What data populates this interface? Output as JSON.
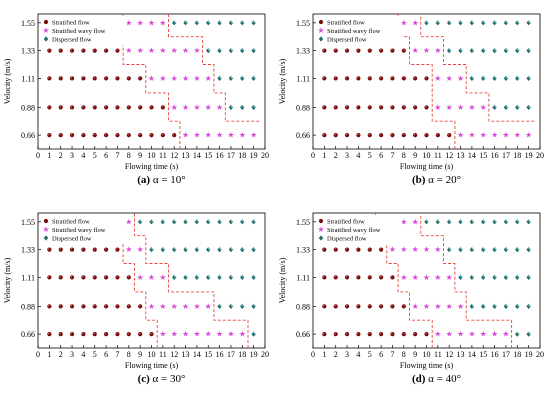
{
  "colors": {
    "stratified": "#7a0a0a",
    "wavy": "#d64bd6",
    "dispersed": "#1f6a6a",
    "boundary": "#e8443a"
  },
  "legend": {
    "stratified": "Stratified flow",
    "wavy": "Stratified wavy flow",
    "dispersed": "Dispersed flow"
  },
  "chart_data": [
    {
      "type": "scatter",
      "caption_letter": "(a)",
      "caption_text": "α = 10°",
      "xlabel": "Flowing time (s)",
      "ylabel": "Velocity (m/s)",
      "xlim": [
        0,
        20
      ],
      "x_ticks": [
        0,
        1,
        2,
        3,
        4,
        5,
        6,
        7,
        8,
        9,
        10,
        11,
        12,
        13,
        14,
        15,
        16,
        17,
        18,
        19,
        20
      ],
      "y_ticks": [
        "0.66",
        "0.88",
        "1.11",
        "1.33",
        "1.55"
      ],
      "x": [
        1,
        2,
        3,
        4,
        5,
        6,
        7,
        8,
        9,
        10,
        11,
        12,
        13,
        14,
        15,
        16,
        17,
        18,
        19
      ],
      "rows": [
        {
          "velocity": "0.66",
          "wavy_from": 13,
          "dispersed_from": 20
        },
        {
          "velocity": "0.88",
          "wavy_from": 12,
          "dispersed_from": 17
        },
        {
          "velocity": "1.11",
          "wavy_from": 10,
          "dispersed_from": 16
        },
        {
          "velocity": "1.33",
          "wavy_from": 8,
          "dispersed_from": 15
        },
        {
          "velocity": "1.55",
          "wavy_from": 8,
          "dispersed_from": 12
        }
      ],
      "wavy_boundary": [
        [
          12.5,
          0.55
        ],
        [
          12.5,
          0.77
        ],
        [
          11.5,
          0.77
        ],
        [
          11.5,
          0.995
        ],
        [
          9.5,
          0.995
        ],
        [
          9.5,
          1.22
        ],
        [
          7.5,
          1.22
        ],
        [
          7.5,
          1.44
        ],
        [
          7.5,
          1.44
        ],
        [
          7.5,
          1.62
        ]
      ],
      "dispersed_boundary": [
        [
          19.5,
          0.77
        ],
        [
          16.5,
          0.77
        ],
        [
          16.5,
          0.995
        ],
        [
          15.5,
          0.995
        ],
        [
          15.5,
          1.22
        ],
        [
          14.5,
          1.22
        ],
        [
          14.5,
          1.44
        ],
        [
          11.5,
          1.44
        ],
        [
          11.5,
          1.62
        ]
      ]
    },
    {
      "type": "scatter",
      "caption_letter": "(b)",
      "caption_text": "α = 20°",
      "xlabel": "Flowing time (s)",
      "ylabel": "Velocity (m/s)",
      "xlim": [
        0,
        20
      ],
      "x_ticks": [
        0,
        1,
        2,
        3,
        4,
        5,
        6,
        7,
        8,
        9,
        10,
        11,
        12,
        13,
        14,
        15,
        16,
        17,
        18,
        19,
        20
      ],
      "y_ticks": [
        "0.66",
        "0.88",
        "1.11",
        "1.33",
        "1.55"
      ],
      "x": [
        1,
        2,
        3,
        4,
        5,
        6,
        7,
        8,
        9,
        10,
        11,
        12,
        13,
        14,
        15,
        16,
        17,
        18,
        19
      ],
      "rows": [
        {
          "velocity": "0.66",
          "wavy_from": 13,
          "dispersed_from": 20
        },
        {
          "velocity": "0.88",
          "wavy_from": 11,
          "dispersed_from": 16
        },
        {
          "velocity": "1.11",
          "wavy_from": 11,
          "dispersed_from": 14
        },
        {
          "velocity": "1.33",
          "wavy_from": 9,
          "dispersed_from": 12
        },
        {
          "velocity": "1.55",
          "wavy_from": 8,
          "dispersed_from": 10
        }
      ],
      "wavy_boundary": [
        [
          12.5,
          0.55
        ],
        [
          12.5,
          0.77
        ],
        [
          10.5,
          0.77
        ],
        [
          10.5,
          0.995
        ],
        [
          10.5,
          0.995
        ],
        [
          10.5,
          1.22
        ],
        [
          8.5,
          1.22
        ],
        [
          8.5,
          1.44
        ],
        [
          7.5,
          1.44
        ],
        [
          7.5,
          1.62
        ]
      ],
      "dispersed_boundary": [
        [
          19.5,
          0.77
        ],
        [
          15.5,
          0.77
        ],
        [
          15.5,
          0.995
        ],
        [
          13.5,
          0.995
        ],
        [
          13.5,
          1.22
        ],
        [
          11.5,
          1.22
        ],
        [
          11.5,
          1.44
        ],
        [
          9.5,
          1.44
        ],
        [
          9.5,
          1.62
        ]
      ]
    },
    {
      "type": "scatter",
      "caption_letter": "(c)",
      "caption_text": "α = 30°",
      "xlabel": "Flowing time (s)",
      "ylabel": "Velocity (m/s)",
      "xlim": [
        0,
        20
      ],
      "x_ticks": [
        0,
        1,
        2,
        3,
        4,
        5,
        6,
        7,
        8,
        9,
        10,
        11,
        12,
        13,
        14,
        15,
        16,
        17,
        18,
        19,
        20
      ],
      "y_ticks": [
        "0.66",
        "0.88",
        "1.11",
        "1.33",
        "1.55"
      ],
      "x": [
        1,
        2,
        3,
        4,
        5,
        6,
        7,
        8,
        9,
        10,
        11,
        12,
        13,
        14,
        15,
        16,
        17,
        18,
        19
      ],
      "rows": [
        {
          "velocity": "0.66",
          "wavy_from": 11,
          "dispersed_from": 19
        },
        {
          "velocity": "0.88",
          "wavy_from": 10,
          "dispersed_from": 16
        },
        {
          "velocity": "1.11",
          "wavy_from": 9,
          "dispersed_from": 12
        },
        {
          "velocity": "1.33",
          "wavy_from": 8,
          "dispersed_from": 10
        },
        {
          "velocity": "1.55",
          "wavy_from": 7,
          "dispersed_from": 9
        }
      ],
      "wavy_boundary": [
        [
          10.5,
          0.55
        ],
        [
          10.5,
          0.77
        ],
        [
          9.5,
          0.77
        ],
        [
          9.5,
          0.995
        ],
        [
          8.5,
          0.995
        ],
        [
          8.5,
          1.22
        ],
        [
          7.5,
          1.22
        ],
        [
          7.5,
          1.44
        ],
        [
          6.5,
          1.44
        ],
        [
          6.5,
          1.62
        ]
      ],
      "dispersed_boundary": [
        [
          18.5,
          0.55
        ],
        [
          18.5,
          0.77
        ],
        [
          15.5,
          0.77
        ],
        [
          15.5,
          0.995
        ],
        [
          11.5,
          0.995
        ],
        [
          11.5,
          1.22
        ],
        [
          9.5,
          1.22
        ],
        [
          9.5,
          1.44
        ],
        [
          8.5,
          1.44
        ],
        [
          8.5,
          1.62
        ]
      ]
    },
    {
      "type": "scatter",
      "caption_letter": "(d)",
      "caption_text": "α = 40°",
      "xlabel": "Flowing time (s)",
      "ylabel": "Velocity (m/s)",
      "xlim": [
        0,
        20
      ],
      "x_ticks": [
        0,
        1,
        2,
        3,
        4,
        5,
        6,
        7,
        8,
        9,
        10,
        11,
        12,
        13,
        14,
        15,
        16,
        17,
        18,
        19,
        20
      ],
      "y_ticks": [
        "0.66",
        "0.88",
        "1.11",
        "1.33",
        "1.55"
      ],
      "x": [
        1,
        2,
        3,
        4,
        5,
        6,
        7,
        8,
        9,
        10,
        11,
        12,
        13,
        14,
        15,
        16,
        17,
        18,
        19
      ],
      "rows": [
        {
          "velocity": "0.66",
          "wavy_from": 11,
          "dispersed_from": 18
        },
        {
          "velocity": "0.88",
          "wavy_from": 9,
          "dispersed_from": 14
        },
        {
          "velocity": "1.11",
          "wavy_from": 8,
          "dispersed_from": 13
        },
        {
          "velocity": "1.33",
          "wavy_from": 7,
          "dispersed_from": 12
        },
        {
          "velocity": "1.55",
          "wavy_from": 6,
          "dispersed_from": 10
        }
      ],
      "wavy_boundary": [
        [
          10.5,
          0.55
        ],
        [
          10.5,
          0.77
        ],
        [
          8.5,
          0.77
        ],
        [
          8.5,
          0.995
        ],
        [
          7.5,
          0.995
        ],
        [
          7.5,
          1.22
        ],
        [
          6.5,
          1.22
        ],
        [
          6.5,
          1.44
        ],
        [
          5.5,
          1.44
        ],
        [
          5.5,
          1.62
        ]
      ],
      "dispersed_boundary": [
        [
          17.5,
          0.55
        ],
        [
          17.5,
          0.77
        ],
        [
          13.5,
          0.77
        ],
        [
          13.5,
          0.995
        ],
        [
          12.5,
          0.995
        ],
        [
          12.5,
          1.22
        ],
        [
          11.5,
          1.22
        ],
        [
          11.5,
          1.44
        ],
        [
          9.5,
          1.44
        ],
        [
          9.5,
          1.62
        ]
      ]
    }
  ]
}
